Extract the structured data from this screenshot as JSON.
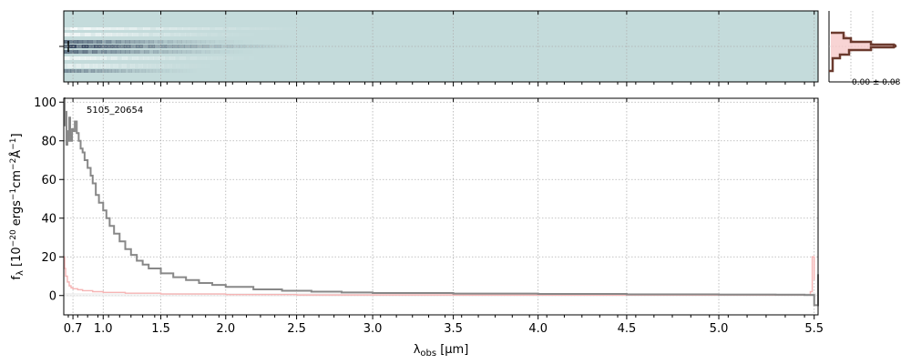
{
  "chart_data": [
    {
      "type": "heatmap",
      "panel": "2d-spectrum",
      "colors": {
        "background": "#c4dbdb",
        "trace": "#2a3a55"
      },
      "grid": true
    },
    {
      "type": "line",
      "panel": "spatial-profile",
      "annotation": "0.00 ± 0.08",
      "colors": {
        "profile": "#6b3a2e",
        "model": "#f3c5c5"
      }
    },
    {
      "type": "line",
      "panel": "1d-spectrum",
      "object_label": "5105_20654",
      "xlabel_main": "λ",
      "xlabel_sub": "obs",
      "xlabel_units": " [μm]",
      "ylabel": "f_λ [10^-20 ergs^-1cm^-2Å^-1]",
      "ylabel_parts": {
        "f": "f",
        "lambda": "λ",
        "bracket_open": " [10",
        "exp1": "−20",
        "ergs": " ergs",
        "exp2": "−1",
        "cm": "cm",
        "exp3": "−2",
        "ang": "Å",
        "exp4": "−1",
        "bracket_close": "]"
      },
      "xticks": [
        {
          "value": 0.7,
          "label": "0.7"
        },
        {
          "value": 1.0,
          "label": "1.0"
        },
        {
          "value": 1.5,
          "label": "1.5"
        },
        {
          "value": 2.0,
          "label": "2.0"
        },
        {
          "value": 2.5,
          "label": "2.5"
        },
        {
          "value": 3.0,
          "label": "3.0"
        },
        {
          "value": 3.5,
          "label": "3.5"
        },
        {
          "value": 4.0,
          "label": "4.0"
        },
        {
          "value": 4.5,
          "label": "4.5"
        },
        {
          "value": 5.0,
          "label": "5.0"
        },
        {
          "value": 5.5,
          "label": "5.5"
        }
      ],
      "yticks": [
        0,
        20,
        40,
        60,
        80,
        100
      ],
      "xlim": [
        0.6,
        5.52
      ],
      "ylim": [
        -10,
        102
      ],
      "grid": true,
      "series": [
        {
          "color": "#888888",
          "x": [
            0.6,
            0.61,
            0.62,
            0.63,
            0.64,
            0.65,
            0.66,
            0.67,
            0.68,
            0.69,
            0.7,
            0.72,
            0.74,
            0.76,
            0.78,
            0.8,
            0.82,
            0.85,
            0.88,
            0.9,
            0.93,
            0.96,
            1.0,
            1.03,
            1.06,
            1.1,
            1.15,
            1.2,
            1.25,
            1.3,
            1.35,
            1.4,
            1.5,
            1.6,
            1.7,
            1.8,
            1.9,
            2.0,
            2.2,
            2.4,
            2.6,
            2.8,
            3.0,
            3.5,
            4.0,
            4.5,
            5.0,
            5.3,
            5.45,
            5.5,
            5.52
          ],
          "values": [
            102,
            88,
            95,
            78,
            85,
            80,
            92,
            83,
            80,
            86,
            85,
            90,
            84,
            80,
            76,
            74,
            70,
            66,
            62,
            58,
            52,
            48,
            44,
            40,
            36,
            32,
            28,
            24,
            21,
            18,
            16,
            14,
            11.5,
            9.5,
            8,
            6.5,
            5.5,
            4.5,
            3.2,
            2.5,
            2.0,
            1.6,
            1.3,
            1.0,
            0.8,
            0.6,
            0.5,
            0.4,
            0.3,
            -5,
            11
          ]
        },
        {
          "color": "#f6b5b5",
          "x": [
            0.6,
            0.61,
            0.62,
            0.64,
            0.66,
            0.68,
            0.7,
            0.75,
            0.8,
            0.9,
            1.0,
            1.2,
            1.5,
            2.0,
            2.5,
            3.0,
            3.5,
            4.0,
            4.5,
            5.0,
            5.3,
            5.45,
            5.48,
            5.49,
            5.5
          ],
          "values": [
            20,
            14,
            10,
            7,
            5,
            4,
            3.5,
            3,
            2.5,
            2,
            1.6,
            1.2,
            0.8,
            0.5,
            0.3,
            0.3,
            0.2,
            0.2,
            0.2,
            0.2,
            0.2,
            0.2,
            2,
            20,
            8
          ]
        }
      ]
    }
  ]
}
